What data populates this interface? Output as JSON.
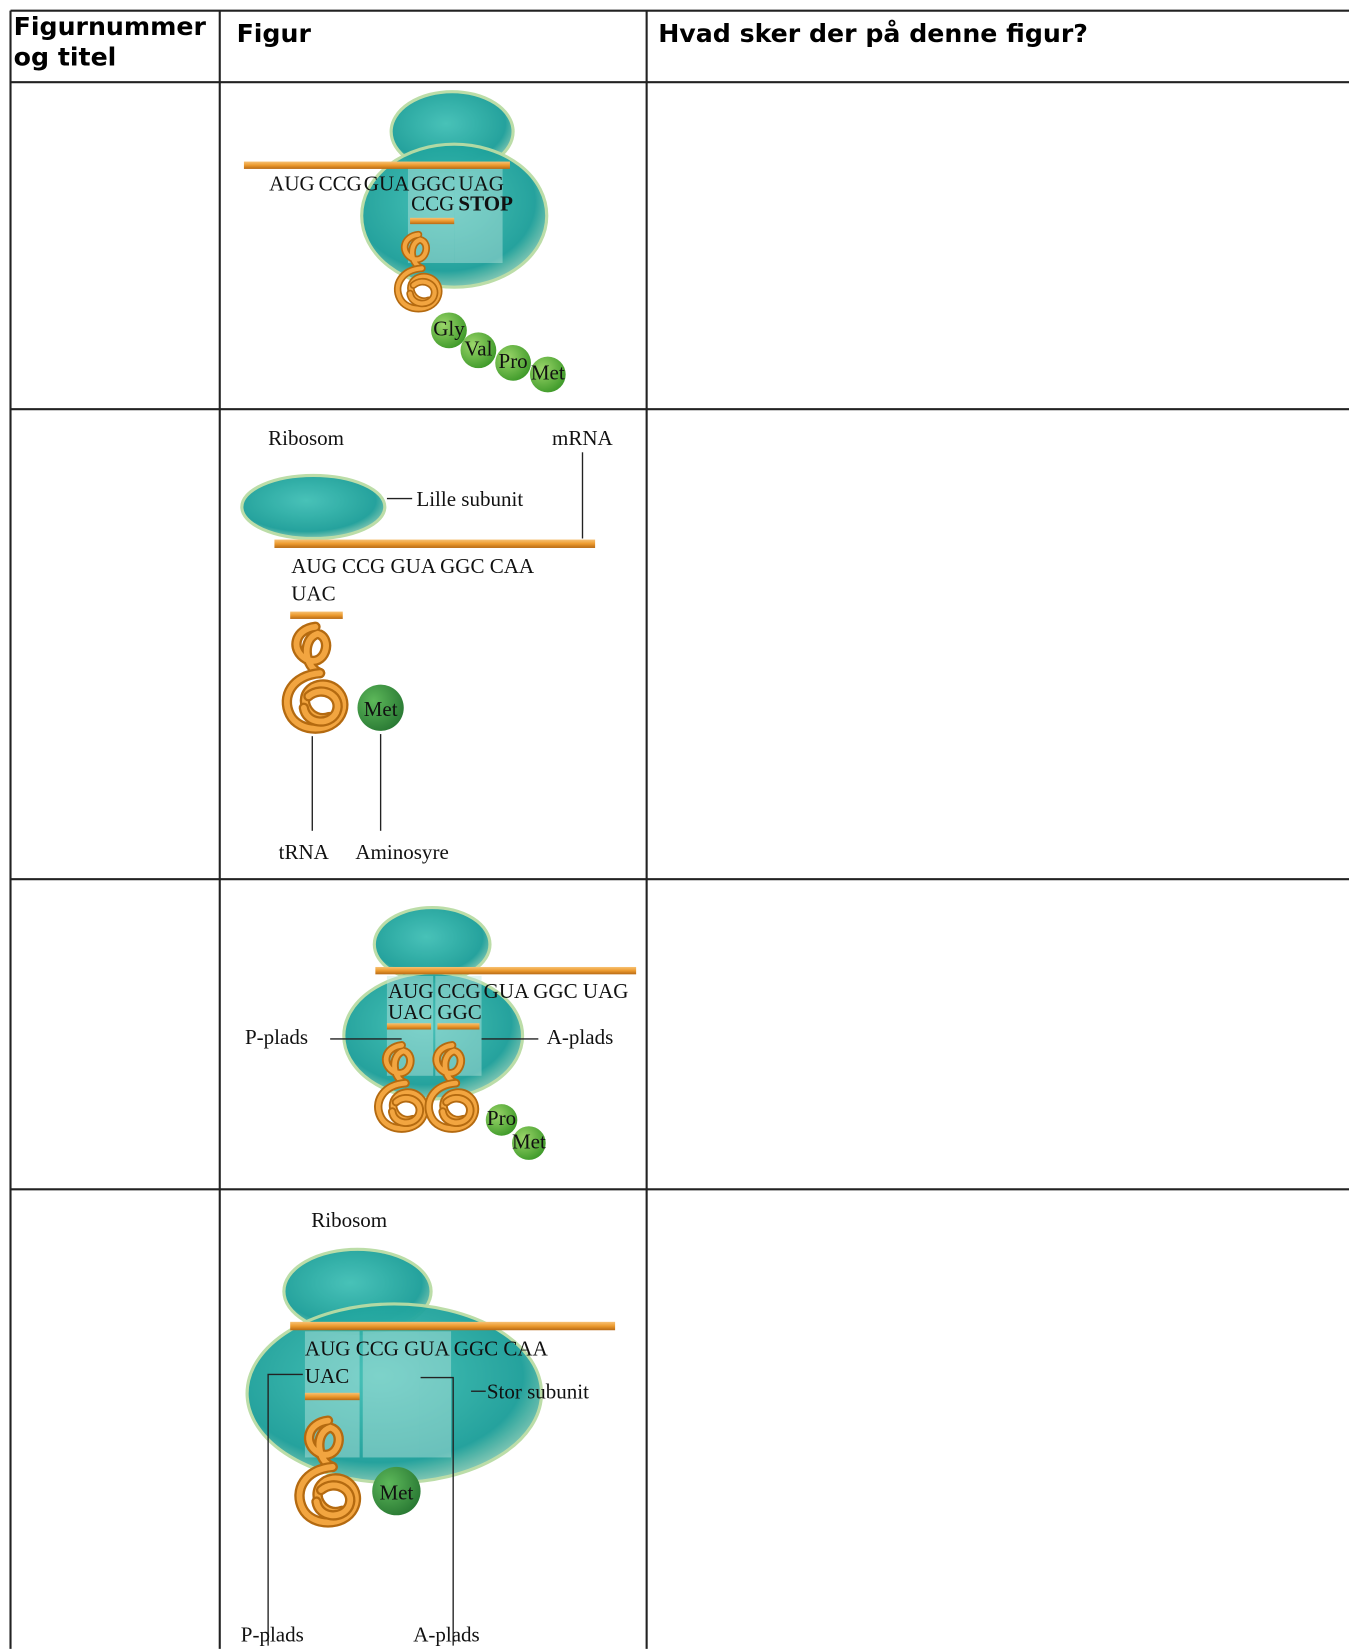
{
  "table": {
    "header": [
      [
        "Figurnummer",
        "og titel"
      ],
      "Figur",
      "Hvad sker der på denne figur?"
    ],
    "rows": [
      {
        "figure": {
          "labels": [
            "AUG",
            "CCG",
            "GUA",
            "GGC",
            "UAG",
            "CCG",
            "STOP",
            "Gly",
            "Val",
            "Pro",
            "Met"
          ]
        }
      },
      {
        "figure": {
          "labels": [
            "Ribosom",
            "mRNA",
            "Lille subunit",
            "AUG CCG GUA GGC CAA",
            "UAC",
            "Met",
            "tRNA",
            "Aminosyre"
          ]
        }
      },
      {
        "figure": {
          "labels": [
            "AUG",
            "CCG",
            "GUA GGC UAG",
            "UAC",
            "GGC",
            "P-plads",
            "A-plads",
            "Pro",
            "Met"
          ]
        }
      },
      {
        "figure": {
          "labels": [
            "Ribosom",
            "AUG CCG GUA GGC CAA",
            "UAC",
            "Stor subunit",
            "Met",
            "P-plads",
            "A-plads"
          ]
        }
      }
    ]
  }
}
